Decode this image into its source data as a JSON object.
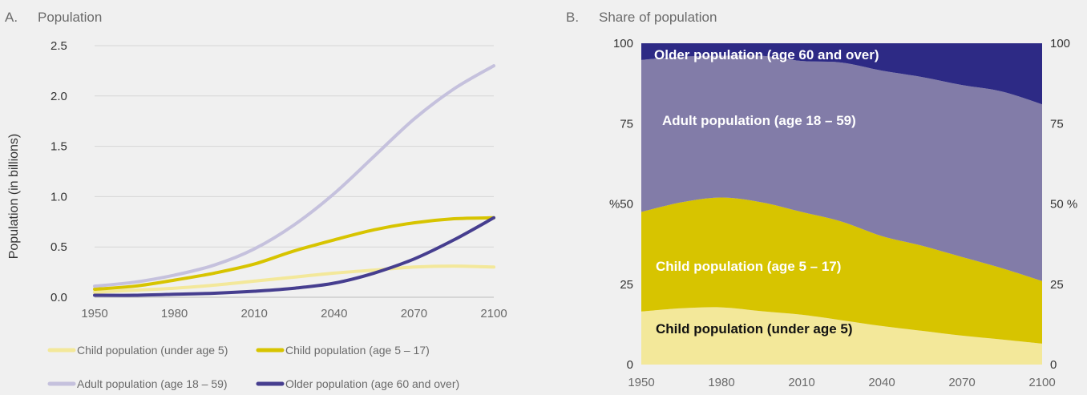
{
  "panel_a": {
    "letter": "A.",
    "title": "Population"
  },
  "panel_b": {
    "letter": "B.",
    "title": "Share of population"
  },
  "colors": {
    "under5": "#f3e89a",
    "age5_17": "#d7c400",
    "adult": "#c5c1dd",
    "adult_area": "#827ca8",
    "older": "#463e8f",
    "older_area": "#2d2a85",
    "background": "#f0f0f0"
  },
  "chart_data": [
    {
      "type": "line",
      "title": "Population",
      "ylabel": "Population (in billions)",
      "xlabel": "",
      "ylim": [
        0,
        2.5
      ],
      "xlim": [
        1950,
        2100
      ],
      "x_ticks": [
        "1950",
        "1980",
        "2010",
        "2040",
        "2070",
        "2100"
      ],
      "y_ticks": [
        "0.0",
        "0.5",
        "1.0",
        "1.5",
        "2.0",
        "2.5"
      ],
      "grid": "horizontal",
      "legend_position": "bottom",
      "x": [
        1950,
        1965,
        1980,
        1995,
        2010,
        2025,
        2040,
        2055,
        2070,
        2085,
        2100
      ],
      "series": [
        {
          "name": "Child population (under age 5)",
          "color_key": "under5",
          "values": [
            0.05,
            0.07,
            0.09,
            0.12,
            0.16,
            0.2,
            0.24,
            0.27,
            0.3,
            0.31,
            0.3
          ]
        },
        {
          "name": "Child population (age 5 – 17)",
          "color_key": "age5_17",
          "values": [
            0.08,
            0.11,
            0.17,
            0.24,
            0.33,
            0.46,
            0.57,
            0.67,
            0.74,
            0.78,
            0.79
          ]
        },
        {
          "name": "Adult population (age 18 – 59)",
          "color_key": "adult",
          "values": [
            0.11,
            0.15,
            0.22,
            0.32,
            0.48,
            0.72,
            1.03,
            1.4,
            1.77,
            2.07,
            2.3
          ]
        },
        {
          "name": "Older population (age 60 and over)",
          "color_key": "older",
          "values": [
            0.02,
            0.02,
            0.03,
            0.04,
            0.06,
            0.09,
            0.14,
            0.24,
            0.38,
            0.57,
            0.79
          ]
        }
      ]
    },
    {
      "type": "area",
      "title": "Share of population",
      "ylabel": "%",
      "ylim": [
        0,
        100
      ],
      "xlim": [
        1950,
        2100
      ],
      "x_ticks": [
        "1950",
        "1980",
        "2010",
        "2040",
        "2070",
        "2100"
      ],
      "y_ticks_left": [
        "0",
        "25",
        "%50",
        "75",
        "100"
      ],
      "y_ticks_right": [
        "0",
        "25",
        "50 %",
        "75",
        "100"
      ],
      "stacked": true,
      "x": [
        1950,
        1965,
        1980,
        1995,
        2010,
        2025,
        2040,
        2055,
        2070,
        2085,
        2100
      ],
      "series": [
        {
          "name": "Child population (under age 5)",
          "color_key": "under5",
          "values": [
            16.5,
            17.5,
            17.8,
            16.6,
            15.5,
            13.8,
            12.0,
            10.5,
            9.0,
            7.8,
            6.5
          ]
        },
        {
          "name": "Child population (age 5 – 17)",
          "color_key": "age5_17",
          "values": [
            31.0,
            33.0,
            34.2,
            33.9,
            32.0,
            30.7,
            28.0,
            26.5,
            24.5,
            22.2,
            19.5
          ]
        },
        {
          "name": "Adult population (age 18 – 59)",
          "color_key": "adult_area",
          "values": [
            47.3,
            45.3,
            44.1,
            45.6,
            47.0,
            49.5,
            51.5,
            52.5,
            53.5,
            55.0,
            55.0
          ]
        },
        {
          "name": "Older population (age 60 and over)",
          "color_key": "older_area",
          "values": [
            5.2,
            4.2,
            3.9,
            3.9,
            5.5,
            6.0,
            8.5,
            10.5,
            13.0,
            15.0,
            19.0
          ]
        }
      ],
      "area_labels": [
        "Older population (age 60 and over)",
        "Adult population (age 18 – 59)",
        "Child population (age 5 – 17)",
        "Child population (under age 5)"
      ]
    }
  ]
}
